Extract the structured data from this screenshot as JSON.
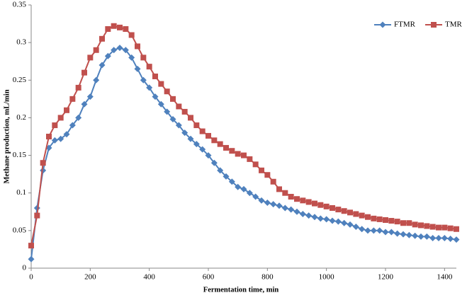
{
  "chart_data": {
    "type": "line",
    "x_label": "Fermentation time, min",
    "y_label": "Methane production, mL/min",
    "x": [
      0,
      20,
      40,
      60,
      80,
      100,
      120,
      140,
      160,
      180,
      200,
      220,
      240,
      260,
      280,
      300,
      320,
      340,
      360,
      380,
      400,
      420,
      440,
      460,
      480,
      500,
      520,
      540,
      560,
      580,
      600,
      620,
      640,
      660,
      680,
      700,
      720,
      740,
      760,
      780,
      800,
      820,
      840,
      860,
      880,
      900,
      920,
      940,
      960,
      980,
      1000,
      1020,
      1040,
      1060,
      1080,
      1100,
      1120,
      1140,
      1160,
      1180,
      1200,
      1220,
      1240,
      1260,
      1280,
      1300,
      1320,
      1340,
      1360,
      1380,
      1400,
      1420,
      1440
    ],
    "series": [
      {
        "name": "FTMR",
        "color": "#4f81bd",
        "marker": "diamond",
        "values": [
          0.012,
          0.08,
          0.13,
          0.16,
          0.17,
          0.172,
          0.178,
          0.19,
          0.2,
          0.218,
          0.228,
          0.25,
          0.27,
          0.282,
          0.29,
          0.293,
          0.29,
          0.28,
          0.265,
          0.25,
          0.24,
          0.228,
          0.218,
          0.208,
          0.198,
          0.19,
          0.18,
          0.172,
          0.165,
          0.158,
          0.15,
          0.14,
          0.13,
          0.122,
          0.115,
          0.108,
          0.105,
          0.1,
          0.095,
          0.09,
          0.087,
          0.085,
          0.083,
          0.08,
          0.078,
          0.075,
          0.072,
          0.07,
          0.068,
          0.066,
          0.065,
          0.063,
          0.062,
          0.06,
          0.058,
          0.055,
          0.052,
          0.05,
          0.05,
          0.05,
          0.048,
          0.048,
          0.046,
          0.045,
          0.044,
          0.043,
          0.042,
          0.042,
          0.04,
          0.04,
          0.04,
          0.039,
          0.038
        ]
      },
      {
        "name": "TMR",
        "color": "#c0504d",
        "marker": "square",
        "values": [
          0.03,
          0.07,
          0.14,
          0.175,
          0.19,
          0.2,
          0.21,
          0.225,
          0.24,
          0.26,
          0.28,
          0.29,
          0.305,
          0.318,
          0.322,
          0.32,
          0.318,
          0.31,
          0.295,
          0.28,
          0.268,
          0.255,
          0.245,
          0.235,
          0.225,
          0.215,
          0.208,
          0.2,
          0.19,
          0.182,
          0.176,
          0.17,
          0.165,
          0.16,
          0.156,
          0.152,
          0.15,
          0.145,
          0.138,
          0.13,
          0.124,
          0.115,
          0.105,
          0.1,
          0.095,
          0.092,
          0.09,
          0.088,
          0.086,
          0.084,
          0.082,
          0.08,
          0.078,
          0.076,
          0.074,
          0.072,
          0.07,
          0.068,
          0.066,
          0.065,
          0.064,
          0.063,
          0.062,
          0.06,
          0.06,
          0.058,
          0.057,
          0.056,
          0.055,
          0.054,
          0.054,
          0.053,
          0.052
        ]
      }
    ],
    "xlim": [
      0,
      1440
    ],
    "xticks": [
      0,
      200,
      400,
      600,
      800,
      1000,
      1200,
      1400
    ],
    "ylim": [
      0,
      0.35
    ],
    "yticks": [
      0,
      0.05,
      0.1,
      0.15,
      0.2,
      0.25,
      0.3,
      0.35
    ],
    "legend": "top-right"
  }
}
